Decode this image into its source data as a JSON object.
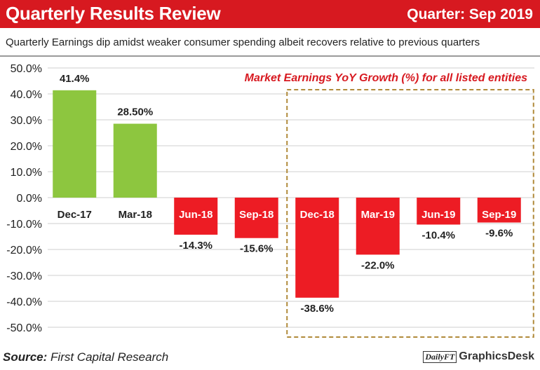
{
  "header": {
    "title": "Quarterly Results Review",
    "quarter": "Quarter: Sep 2019"
  },
  "subtitle": "Quarterly Earnings dip amidst weaker consumer spending albeit recovers relative to previous quarters",
  "footer": {
    "source_label": "Source:",
    "source_text": "First Capital Research",
    "brand_logo": "DailyFT",
    "brand_desk": "GraphicsDesk"
  },
  "chart_data": {
    "type": "bar",
    "title": "Market Earnings YoY Growth (%) for all listed entities",
    "categories": [
      "Dec-17",
      "Mar-18",
      "Jun-18",
      "Sep-18",
      "Dec-18",
      "Mar-19",
      "Jun-19",
      "Sep-19"
    ],
    "values": [
      41.4,
      28.5,
      -14.3,
      -15.6,
      -38.6,
      -22.0,
      -10.4,
      -9.6
    ],
    "value_labels": [
      "41.4%",
      "28.50%",
      "-14.3%",
      "-15.6%",
      "-38.6%",
      "-22.0%",
      "-10.4%",
      "-9.6%"
    ],
    "ylim": [
      -50,
      50
    ],
    "yticks": [
      50,
      40,
      30,
      20,
      10,
      0,
      -10,
      -20,
      -30,
      -40,
      -50
    ],
    "ytick_labels": [
      "50.0%",
      "40.0%",
      "30.0%",
      "20.0%",
      "10.0%",
      "0.0%",
      "-10.0%",
      "-20.0%",
      "-30.0%",
      "-40.0%",
      "-50.0%"
    ],
    "grid": true,
    "positive_color": "#8dc63f",
    "negative_color": "#ed1c24",
    "highlight_box_color": "#b08a3a",
    "highlight_range": [
      "Dec-18",
      "Sep-19"
    ]
  }
}
